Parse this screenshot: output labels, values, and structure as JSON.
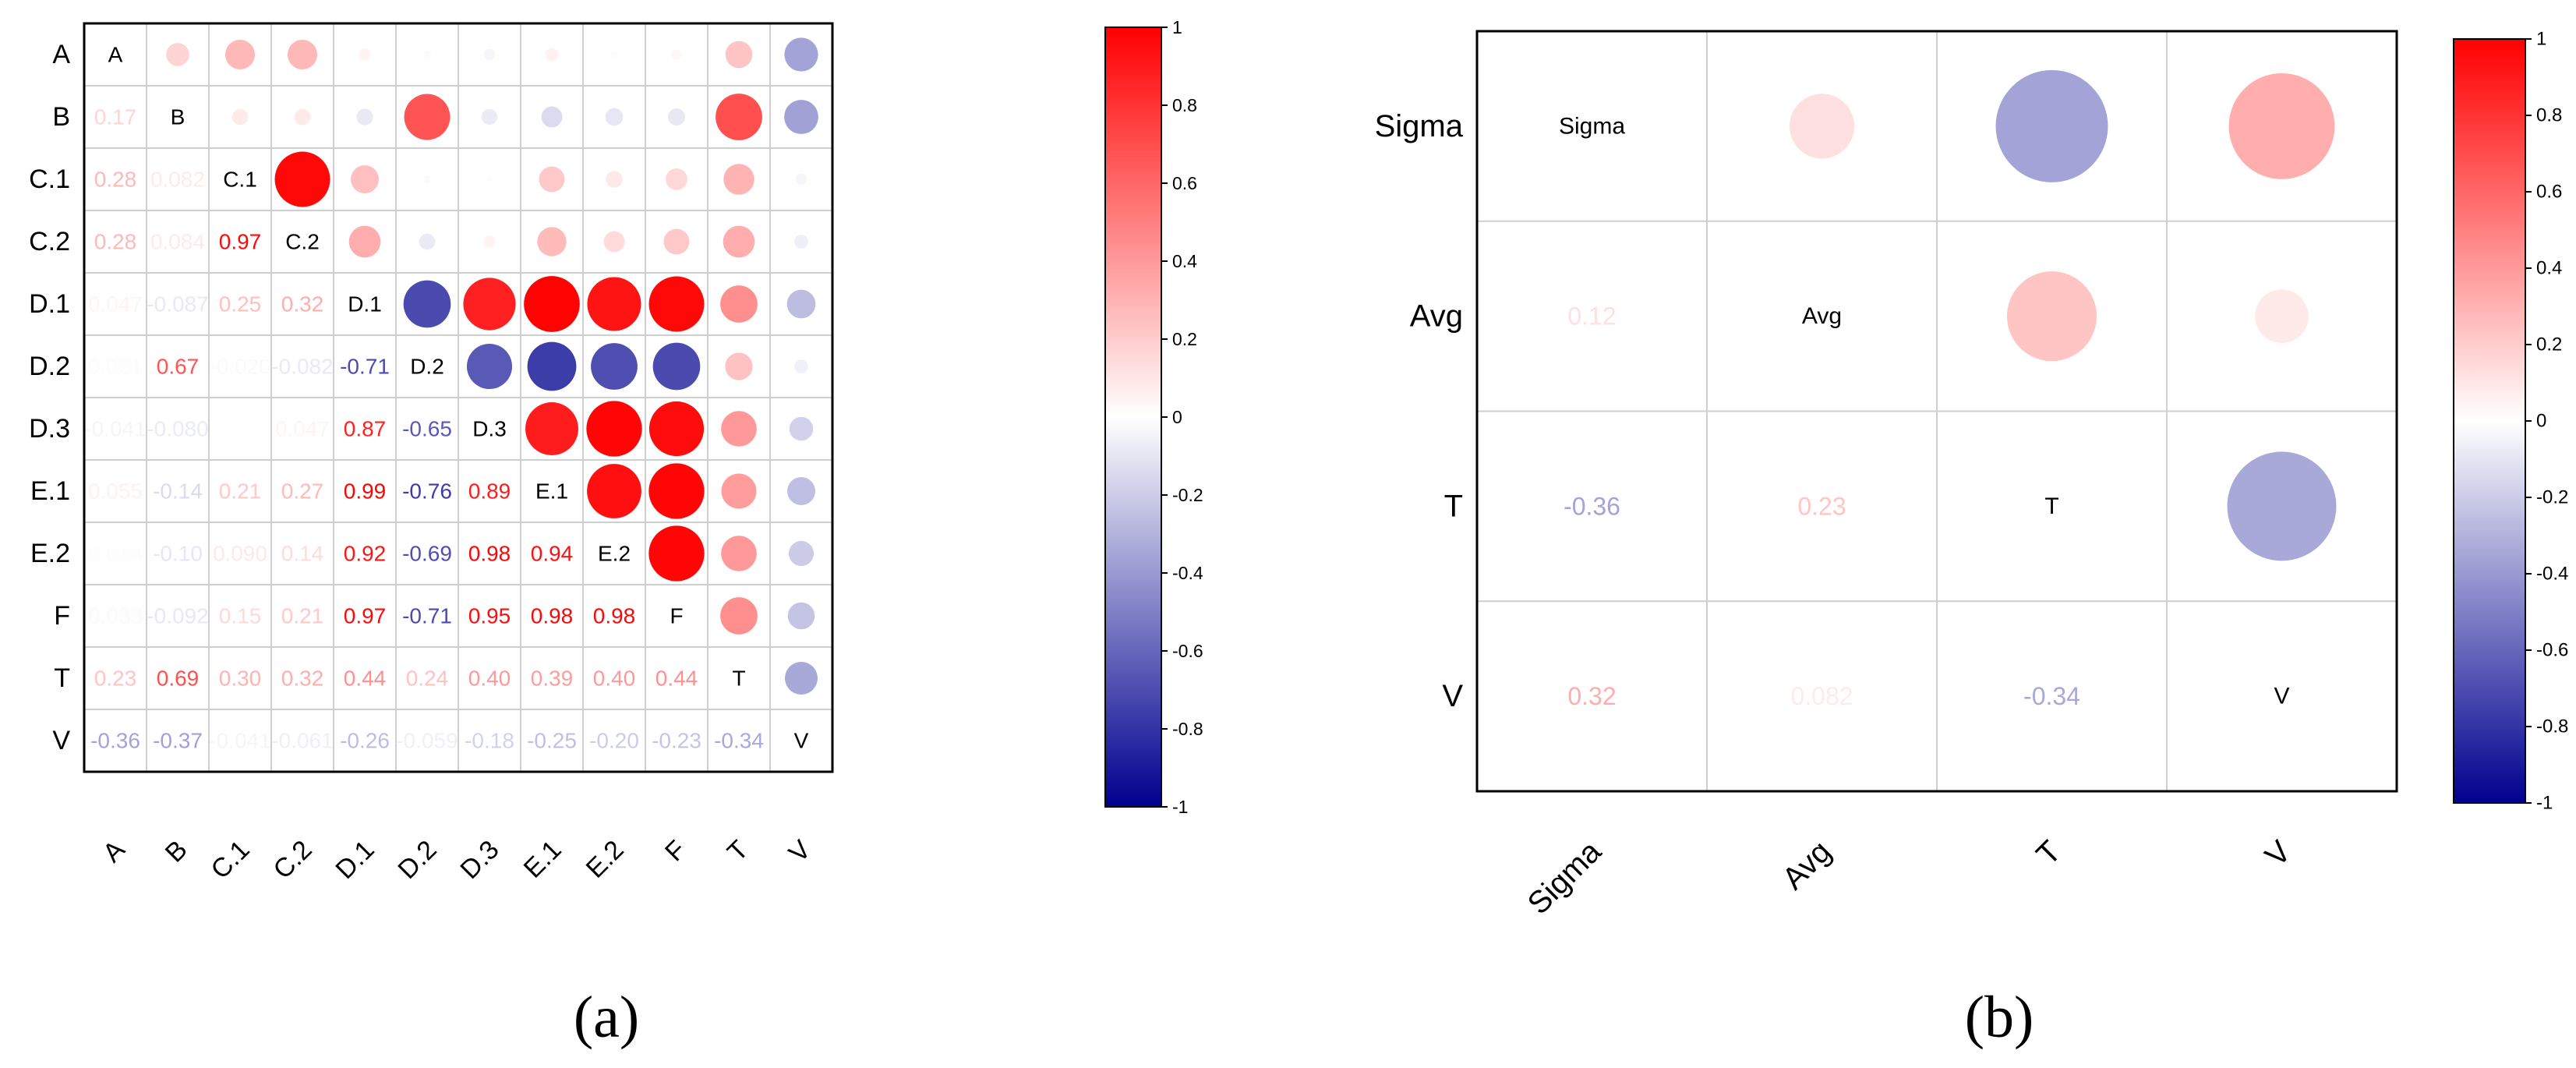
{
  "chart_data": [
    {
      "type": "heatmap",
      "panel_label": "(a)",
      "variables": [
        "A",
        "B",
        "C.1",
        "C.2",
        "D.1",
        "D.2",
        "D.3",
        "E.1",
        "E.2",
        "F",
        "T",
        "V"
      ],
      "matrix": [
        [
          1,
          0.17,
          0.28,
          0.28,
          0.047,
          0.021,
          -0.041,
          0.055,
          0.014,
          0.033,
          0.23,
          -0.36
        ],
        [
          0.17,
          1,
          0.082,
          0.084,
          -0.087,
          0.67,
          -0.08,
          -0.14,
          -0.1,
          -0.092,
          0.69,
          -0.37
        ],
        [
          0.28,
          0.082,
          1,
          0.97,
          0.25,
          -0.02,
          -0.01,
          0.21,
          0.09,
          0.15,
          0.3,
          -0.041
        ],
        [
          0.28,
          0.084,
          0.97,
          1,
          0.32,
          -0.082,
          0.047,
          0.27,
          0.14,
          0.21,
          0.32,
          -0.061
        ],
        [
          0.047,
          -0.087,
          0.25,
          0.32,
          1,
          -0.71,
          0.87,
          0.99,
          0.92,
          0.97,
          0.44,
          -0.26
        ],
        [
          0.021,
          0.67,
          -0.02,
          -0.082,
          -0.71,
          1,
          -0.65,
          -0.76,
          -0.69,
          -0.71,
          0.24,
          -0.059
        ],
        [
          -0.041,
          -0.08,
          -0.01,
          0.047,
          0.87,
          -0.65,
          1,
          0.89,
          0.98,
          0.95,
          0.4,
          -0.18
        ],
        [
          0.055,
          -0.14,
          0.21,
          0.27,
          0.99,
          -0.76,
          0.89,
          1,
          0.94,
          0.98,
          0.39,
          -0.25
        ],
        [
          0.014,
          -0.1,
          0.09,
          0.14,
          0.92,
          -0.69,
          0.98,
          0.94,
          1,
          0.98,
          0.4,
          -0.2
        ],
        [
          0.033,
          -0.092,
          0.15,
          0.21,
          0.97,
          -0.71,
          0.95,
          0.98,
          0.98,
          1,
          0.44,
          -0.23
        ],
        [
          0.23,
          0.69,
          0.3,
          0.32,
          0.44,
          0.24,
          0.4,
          0.39,
          0.4,
          0.44,
          1,
          -0.34
        ],
        [
          -0.36,
          -0.37,
          -0.041,
          -0.061,
          -0.26,
          -0.059,
          -0.18,
          -0.25,
          -0.2,
          -0.23,
          -0.34,
          1
        ]
      ],
      "lower_labels": [
        [
          null,
          null,
          null,
          null,
          null,
          null,
          null,
          null,
          null,
          null,
          null,
          null
        ],
        [
          "0.17",
          null,
          null,
          null,
          null,
          null,
          null,
          null,
          null,
          null,
          null,
          null
        ],
        [
          "0.28",
          "0.082",
          null,
          null,
          null,
          null,
          null,
          null,
          null,
          null,
          null,
          null
        ],
        [
          "0.28",
          "0.084",
          "0.97",
          null,
          null,
          null,
          null,
          null,
          null,
          null,
          null,
          null
        ],
        [
          "0.047",
          "-0.087",
          "0.25",
          "0.32",
          null,
          null,
          null,
          null,
          null,
          null,
          null,
          null
        ],
        [
          "0.021",
          "0.67",
          "-0.020",
          "-0.082",
          "-0.71",
          null,
          null,
          null,
          null,
          null,
          null,
          null
        ],
        [
          "-0.041",
          "-0.080",
          "",
          "0.047",
          "0.87",
          "-0.65",
          null,
          null,
          null,
          null,
          null,
          null
        ],
        [
          "0.055",
          "-0.14",
          "0.21",
          "0.27",
          "0.99",
          "-0.76",
          "0.89",
          null,
          null,
          null,
          null,
          null
        ],
        [
          "0.014",
          "-0.10",
          "0.090",
          "0.14",
          "0.92",
          "-0.69",
          "0.98",
          "0.94",
          null,
          null,
          null,
          null
        ],
        [
          "0.033",
          "-0.092",
          "0.15",
          "0.21",
          "0.97",
          "-0.71",
          "0.95",
          "0.98",
          "0.98",
          null,
          null,
          null
        ],
        [
          "0.23",
          "0.69",
          "0.30",
          "0.32",
          "0.44",
          "0.24",
          "0.40",
          "0.39",
          "0.40",
          "0.44",
          null,
          null
        ],
        [
          "-0.36",
          "-0.37",
          "-0.041",
          "-0.061",
          "-0.26",
          "-0.059",
          "-0.18",
          "-0.25",
          "-0.20",
          "-0.23",
          "-0.34",
          null
        ]
      ],
      "colorbar": {
        "range": [
          -1,
          1
        ],
        "ticks": [
          "1",
          "0.8",
          "0.6",
          "0.4",
          "0.2",
          "0",
          "-0.2",
          "-0.4",
          "-0.6",
          "-0.8",
          "-1"
        ]
      }
    },
    {
      "type": "heatmap",
      "panel_label": "(b)",
      "variables": [
        "Sigma",
        "Avg",
        "T",
        "V"
      ],
      "matrix": [
        [
          1,
          0.12,
          -0.36,
          0.32
        ],
        [
          0.12,
          1,
          0.23,
          0.082
        ],
        [
          -0.36,
          0.23,
          1,
          -0.34
        ],
        [
          0.32,
          0.082,
          -0.34,
          1
        ]
      ],
      "lower_labels": [
        [
          null,
          null,
          null,
          null
        ],
        [
          "0.12",
          null,
          null,
          null
        ],
        [
          "-0.36",
          "0.23",
          null,
          null
        ],
        [
          "0.32",
          "0.082",
          "-0.34",
          null
        ]
      ],
      "colorbar": {
        "range": [
          -1,
          1
        ],
        "ticks": [
          "1",
          "0.8",
          "0.6",
          "0.4",
          "0.2",
          "0",
          "-0.2",
          "-0.4",
          "-0.6",
          "-0.8",
          "-1"
        ]
      }
    }
  ],
  "colors": {
    "negative": "#00008f",
    "neutral": "#ffffff",
    "positive": "#ff0000",
    "grid": "#cfcfcf",
    "frame": "#000000"
  }
}
